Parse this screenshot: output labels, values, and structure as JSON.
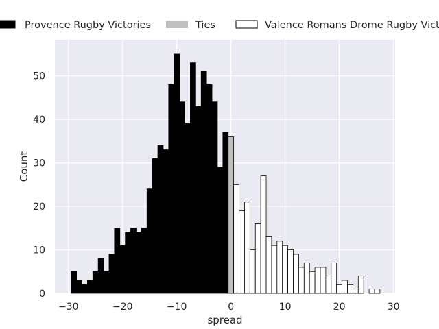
{
  "chart_data": {
    "type": "bar",
    "title": "",
    "xlabel": "spread",
    "ylabel": "Count",
    "xlim": [
      -32.5,
      30.3
    ],
    "ylim": [
      0,
      58.3
    ],
    "xticks": [
      -30,
      -20,
      -10,
      0,
      10,
      20,
      30
    ],
    "yticks": [
      0,
      10,
      20,
      30,
      40,
      50
    ],
    "grid": true,
    "legend_position": "top",
    "series": [
      {
        "name": "Provence Rugby Victories",
        "color": "#000000",
        "edge": "#000000",
        "x": [
          -29,
          -28,
          -27,
          -26,
          -25,
          -24,
          -23,
          -22,
          -21,
          -20,
          -19,
          -18,
          -17,
          -16,
          -15,
          -14,
          -13,
          -12,
          -11,
          -10,
          -9,
          -8,
          -7,
          -6,
          -5,
          -4,
          -3,
          -2,
          -1
        ],
        "values": [
          5,
          3,
          2,
          3,
          5,
          8,
          5,
          9,
          15,
          11,
          14,
          15,
          14,
          15,
          24,
          31,
          34,
          33,
          48,
          55,
          44,
          39,
          53,
          43,
          51,
          48,
          44,
          29,
          37
        ]
      },
      {
        "name": "Ties",
        "color": "#bfbfbf",
        "edge": "#000000",
        "x": [
          0
        ],
        "values": [
          36
        ]
      },
      {
        "name": "Valence Romans Drome Rugby Victories",
        "color": "#ffffff",
        "edge": "#000000",
        "x": [
          1,
          2,
          3,
          4,
          5,
          6,
          7,
          8,
          9,
          10,
          11,
          12,
          13,
          14,
          15,
          16,
          17,
          18,
          19,
          20,
          21,
          22,
          23,
          24,
          25,
          26,
          27
        ],
        "values": [
          25,
          19,
          21,
          10,
          16,
          27,
          13,
          11,
          12,
          11,
          10,
          9,
          6,
          7,
          5,
          6,
          6,
          4,
          7,
          2,
          3,
          2,
          1,
          4,
          0,
          1,
          1
        ]
      }
    ]
  }
}
